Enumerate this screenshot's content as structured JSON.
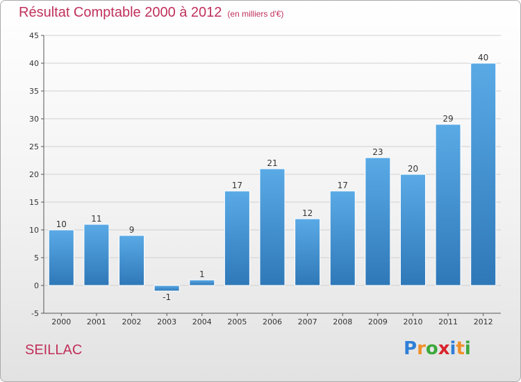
{
  "title": "Résultat Comptable 2000 à 2012",
  "subtitle": "(en milliers d'€)",
  "commune": "SEILLAC",
  "logo": {
    "text": "Proxiti",
    "letters": [
      "P",
      "r",
      "o",
      "x",
      "i",
      "t",
      "i"
    ],
    "colors": [
      "#2f7fd8",
      "#f0902a",
      "#3ca83c",
      "#d8242c",
      "#2f7fd8",
      "#f0902a",
      "#3ca83c"
    ]
  },
  "colors": {
    "accent": "#c0305a",
    "bar_top": "#5aaae6",
    "bar_bottom": "#2f78b8",
    "grid": "#d0d0d0"
  },
  "chart_data": {
    "type": "bar",
    "title": "Résultat Comptable 2000 à 2012",
    "subtitle": "(en milliers d'€)",
    "xlabel": "",
    "ylabel": "",
    "categories": [
      "2000",
      "2001",
      "2002",
      "2003",
      "2004",
      "2005",
      "2006",
      "2007",
      "2008",
      "2009",
      "2010",
      "2011",
      "2012"
    ],
    "values": [
      10,
      11,
      9,
      -1,
      1,
      17,
      21,
      12,
      17,
      23,
      20,
      29,
      40
    ],
    "ylim": [
      -5,
      45
    ],
    "yticks": [
      -5,
      0,
      5,
      10,
      15,
      20,
      25,
      30,
      35,
      40,
      45
    ],
    "grid": true
  }
}
